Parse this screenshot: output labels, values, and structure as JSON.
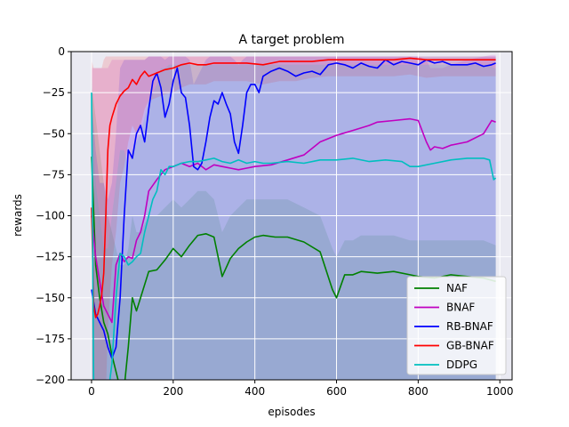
{
  "chart_data": {
    "type": "line",
    "title": "A target problem",
    "xlabel": "episodes",
    "ylabel": "rewards",
    "xlim": [
      -50,
      1030
    ],
    "ylim": [
      -200,
      0
    ],
    "xticks": [
      0,
      200,
      400,
      600,
      800,
      1000
    ],
    "yticks": [
      0,
      -25,
      -50,
      -75,
      -100,
      -125,
      -150,
      -175,
      -200
    ],
    "grid": true,
    "legend": "lower-right",
    "series": [
      {
        "name": "NAF",
        "color": "#008000",
        "x": [
          0,
          10,
          20,
          30,
          40,
          50,
          60,
          70,
          80,
          90,
          100,
          110,
          120,
          140,
          160,
          180,
          200,
          220,
          240,
          260,
          280,
          300,
          320,
          340,
          360,
          380,
          400,
          420,
          450,
          480,
          520,
          560,
          590,
          600,
          610,
          620,
          640,
          660,
          700,
          740,
          780,
          800,
          840,
          880,
          920,
          960,
          990
        ],
        "y": [
          -64,
          -130,
          -150,
          -165,
          -172,
          -185,
          -195,
          -205,
          -205,
          -180,
          -150,
          -158,
          -150,
          -134,
          -133,
          -127,
          -120,
          -125,
          -118,
          -112,
          -111,
          -113,
          -137,
          -126,
          -120,
          -116,
          -113,
          -112,
          -113,
          -113,
          -116,
          -122,
          -145,
          -150,
          -143,
          -136,
          -136,
          -134,
          -135,
          -134,
          -136,
          -137,
          -138,
          -136,
          -137,
          -138,
          -140
        ],
        "band_low": [
          -200,
          -210,
          -210,
          -215,
          -215,
          -215,
          -215,
          -215,
          -215,
          -215,
          -210,
          -210,
          -210,
          -210,
          -210,
          -210,
          -210,
          -210,
          -210,
          -210,
          -210,
          -210,
          -210,
          -210,
          -210,
          -210,
          -210,
          -210,
          -210,
          -210,
          -210,
          -210,
          -210,
          -210,
          -210,
          -210,
          -210,
          -210,
          -210,
          -210,
          -210,
          -210,
          -210,
          -210,
          -210,
          -210,
          -210
        ],
        "band_high": [
          -20,
          -40,
          -60,
          -80,
          -100,
          -110,
          -120,
          -130,
          -130,
          -120,
          -100,
          -110,
          -110,
          -100,
          -100,
          -95,
          -90,
          -95,
          -90,
          -85,
          -85,
          -90,
          -110,
          -100,
          -95,
          -90,
          -90,
          -90,
          -90,
          -90,
          -95,
          -100,
          -120,
          -125,
          -120,
          -115,
          -115,
          -112,
          -112,
          -112,
          -115,
          -115,
          -115,
          -115,
          -115,
          -115,
          -118
        ]
      },
      {
        "name": "BNAF",
        "color": "#c000c0",
        "x": [
          0,
          10,
          20,
          30,
          40,
          50,
          60,
          70,
          80,
          90,
          100,
          110,
          120,
          130,
          140,
          160,
          180,
          200,
          220,
          240,
          260,
          280,
          300,
          320,
          340,
          360,
          380,
          400,
          440,
          480,
          520,
          560,
          600,
          640,
          680,
          700,
          740,
          780,
          800,
          820,
          830,
          840,
          860,
          880,
          920,
          960,
          980,
          990
        ],
        "y": [
          -100,
          -125,
          -140,
          -155,
          -160,
          -165,
          -130,
          -123,
          -128,
          -125,
          -126,
          -115,
          -110,
          -100,
          -85,
          -78,
          -72,
          -70,
          -68,
          -70,
          -68,
          -72,
          -69,
          -70,
          -71,
          -72,
          -71,
          -70,
          -69,
          -66,
          -63,
          -55,
          -51,
          -48,
          -45,
          -43,
          -42,
          -41,
          -42,
          -55,
          -60,
          -58,
          -59,
          -57,
          -55,
          -50,
          -42,
          -43
        ],
        "band_low": [
          -210,
          -210,
          -210,
          -210,
          -210,
          -210,
          -210,
          -210,
          -210,
          -210,
          -210,
          -210,
          -210,
          -210,
          -210,
          -210,
          -210,
          -210,
          -210,
          -210,
          -210,
          -210,
          -210,
          -210,
          -210,
          -210,
          -210,
          -210,
          -210,
          -210,
          -210,
          -210,
          -210,
          -210,
          -210,
          -210,
          -210,
          -210,
          -210,
          -210,
          -210,
          -210,
          -210,
          -210,
          -210,
          -210,
          -210,
          -210
        ],
        "band_high": [
          -10,
          -10,
          -10,
          -10,
          -10,
          -5,
          -5,
          -5,
          -5,
          -5,
          -5,
          -5,
          -5,
          -5,
          -3,
          -3,
          -3,
          -3,
          -3,
          -3,
          -3,
          -3,
          -3,
          -3,
          -3,
          -3,
          -3,
          -3,
          -3,
          -3,
          -3,
          -3,
          -3,
          -3,
          -3,
          -3,
          -3,
          -3,
          -3,
          -5,
          -10,
          -10,
          -10,
          -8,
          -5,
          -3,
          -2,
          -2
        ]
      },
      {
        "name": "RB-BNAF",
        "color": "#0000ff",
        "x": [
          0,
          10,
          20,
          30,
          40,
          50,
          60,
          70,
          80,
          90,
          100,
          110,
          120,
          130,
          140,
          150,
          160,
          170,
          180,
          190,
          200,
          210,
          220,
          230,
          240,
          250,
          260,
          270,
          280,
          290,
          300,
          310,
          320,
          330,
          340,
          350,
          360,
          370,
          380,
          390,
          400,
          410,
          420,
          440,
          460,
          480,
          500,
          520,
          540,
          560,
          580,
          600,
          620,
          640,
          660,
          680,
          700,
          720,
          740,
          760,
          780,
          800,
          820,
          840,
          860,
          880,
          900,
          920,
          940,
          960,
          980,
          990
        ],
        "y": [
          -145,
          -160,
          -165,
          -170,
          -180,
          -187,
          -180,
          -150,
          -100,
          -60,
          -65,
          -50,
          -45,
          -55,
          -35,
          -18,
          -13,
          -22,
          -40,
          -32,
          -18,
          -10,
          -25,
          -28,
          -45,
          -70,
          -72,
          -68,
          -55,
          -40,
          -30,
          -32,
          -25,
          -32,
          -38,
          -55,
          -62,
          -45,
          -25,
          -20,
          -20,
          -25,
          -15,
          -12,
          -10,
          -12,
          -15,
          -13,
          -12,
          -14,
          -8,
          -7,
          -8,
          -10,
          -7,
          -9,
          -10,
          -5,
          -8,
          -6,
          -7,
          -8,
          -5,
          -7,
          -6,
          -8,
          -8,
          -8,
          -7,
          -9,
          -8,
          -7
        ],
        "band_low": [
          -210,
          -210,
          -210,
          -210,
          -210,
          -210,
          -210,
          -210,
          -210,
          -210,
          -210,
          -210,
          -210,
          -210,
          -210,
          -210,
          -210,
          -210,
          -210,
          -210,
          -210,
          -210,
          -210,
          -210,
          -210,
          -210,
          -210,
          -210,
          -210,
          -210,
          -210,
          -210,
          -210,
          -210,
          -210,
          -210,
          -210,
          -210,
          -210,
          -210,
          -210,
          -210,
          -210,
          -210,
          -210,
          -210,
          -210,
          -210,
          -210,
          -210,
          -210,
          -210,
          -210,
          -210,
          -210,
          -210,
          -210,
          -210,
          -210,
          -210,
          -210,
          -210,
          -210,
          -210,
          -210,
          -210,
          -210,
          -210,
          -210,
          -210,
          -210,
          -210
        ],
        "band_high": [
          -30,
          -60,
          -80,
          -80,
          -90,
          -80,
          -50,
          -10,
          -5,
          -5,
          -5,
          -5,
          -5,
          -5,
          -3,
          -3,
          -3,
          -3,
          -5,
          -3,
          -3,
          -3,
          -3,
          -3,
          -5,
          -20,
          -15,
          -10,
          -5,
          -3,
          -3,
          -3,
          -3,
          -3,
          -3,
          -5,
          -8,
          -5,
          -3,
          -3,
          -3,
          -3,
          -3,
          -3,
          -3,
          -3,
          -3,
          -3,
          -3,
          -3,
          -3,
          -3,
          -3,
          -3,
          -3,
          -3,
          -3,
          -3,
          -3,
          -3,
          -3,
          -3,
          -3,
          -3,
          -3,
          -3,
          -3,
          -3,
          -3,
          -3,
          -3,
          -3
        ]
      },
      {
        "name": "GB-BNAF",
        "color": "#ff0000",
        "x": [
          0,
          5,
          10,
          15,
          20,
          25,
          30,
          35,
          40,
          45,
          50,
          60,
          70,
          80,
          90,
          100,
          110,
          120,
          130,
          140,
          160,
          180,
          200,
          220,
          240,
          260,
          280,
          300,
          340,
          380,
          420,
          460,
          500,
          540,
          580,
          620,
          660,
          700,
          740,
          780,
          820,
          860,
          900,
          940,
          980,
          990
        ],
        "y": [
          -95,
          -155,
          -162,
          -160,
          -155,
          -148,
          -135,
          -100,
          -60,
          -45,
          -40,
          -32,
          -27,
          -24,
          -22,
          -17,
          -20,
          -15,
          -12,
          -15,
          -13,
          -11,
          -10,
          -8,
          -7,
          -8,
          -8,
          -7,
          -7,
          -7,
          -8,
          -6,
          -6,
          -6,
          -5,
          -5,
          -5,
          -5,
          -5,
          -4,
          -5,
          -5,
          -5,
          -5,
          -5,
          -5
        ],
        "band_low": [
          -210,
          -210,
          -210,
          -210,
          -210,
          -210,
          -210,
          -210,
          -170,
          -150,
          -130,
          -110,
          -80,
          -70,
          -55,
          -45,
          -50,
          -45,
          -35,
          -30,
          -28,
          -26,
          -25,
          -22,
          -20,
          -20,
          -20,
          -18,
          -18,
          -18,
          -20,
          -18,
          -18,
          -16,
          -15,
          -15,
          -15,
          -15,
          -15,
          -14,
          -16,
          -15,
          -15,
          -15,
          -15,
          -15
        ],
        "band_high": [
          -5,
          -10,
          -10,
          -10,
          -10,
          -10,
          -5,
          -3,
          -3,
          -3,
          -3,
          -3,
          -3,
          -3,
          -3,
          -3,
          -3,
          -3,
          -3,
          -3,
          -3,
          -3,
          -3,
          -3,
          -3,
          -3,
          -3,
          -3,
          -3,
          -3,
          -3,
          -3,
          -3,
          -3,
          -3,
          -3,
          -3,
          -3,
          -3,
          -3,
          -3,
          -3,
          -3,
          -3,
          -3,
          -3
        ]
      },
      {
        "name": "DDPG",
        "color": "#00bfbf",
        "x": [
          0,
          5,
          10,
          20,
          30,
          40,
          50,
          60,
          70,
          80,
          90,
          100,
          110,
          120,
          130,
          140,
          150,
          160,
          170,
          180,
          190,
          200,
          220,
          240,
          260,
          280,
          300,
          320,
          340,
          360,
          380,
          400,
          420,
          440,
          480,
          520,
          560,
          600,
          640,
          680,
          720,
          760,
          780,
          800,
          840,
          880,
          920,
          960,
          975,
          985,
          990
        ],
        "y": [
          -25,
          -200,
          -210,
          -210,
          -210,
          -210,
          -190,
          -150,
          -123,
          -125,
          -130,
          -128,
          -125,
          -123,
          -110,
          -100,
          -90,
          -85,
          -72,
          -75,
          -70,
          -70,
          -68,
          -67,
          -67,
          -66,
          -65,
          -67,
          -68,
          -66,
          -68,
          -67,
          -68,
          -68,
          -67,
          -68,
          -66,
          -66,
          -65,
          -67,
          -66,
          -67,
          -70,
          -70,
          -68,
          -66,
          -65,
          -65,
          -66,
          -78,
          -77
        ],
        "band_low": [
          -210,
          -210,
          -210,
          -210,
          -210,
          -210,
          -210,
          -210,
          -210,
          -210,
          -210,
          -210,
          -210,
          -210,
          -210,
          -210,
          -210,
          -210,
          -210,
          -210,
          -210,
          -210,
          -210,
          -210,
          -210,
          -210,
          -210,
          -210,
          -210,
          -210,
          -210,
          -210,
          -210,
          -210,
          -210,
          -210,
          -210,
          -210,
          -210,
          -210,
          -210,
          -210,
          -210,
          -210,
          -210,
          -210,
          -210,
          -210,
          -210,
          -210,
          -210
        ],
        "band_high": [
          -5,
          -50,
          -80,
          -100,
          -120,
          -120,
          -100,
          -80,
          -60,
          -60,
          -70,
          -60,
          -55,
          -50,
          -40,
          -30,
          -25,
          -20,
          -10,
          -10,
          -8,
          -8,
          -8,
          -8,
          -8,
          -8,
          -8,
          -8,
          -8,
          -8,
          -8,
          -8,
          -8,
          -8,
          -8,
          -8,
          -8,
          -8,
          -8,
          -8,
          -8,
          -8,
          -8,
          -8,
          -8,
          -8,
          -8,
          -8,
          -8,
          -10,
          -10
        ]
      }
    ]
  }
}
